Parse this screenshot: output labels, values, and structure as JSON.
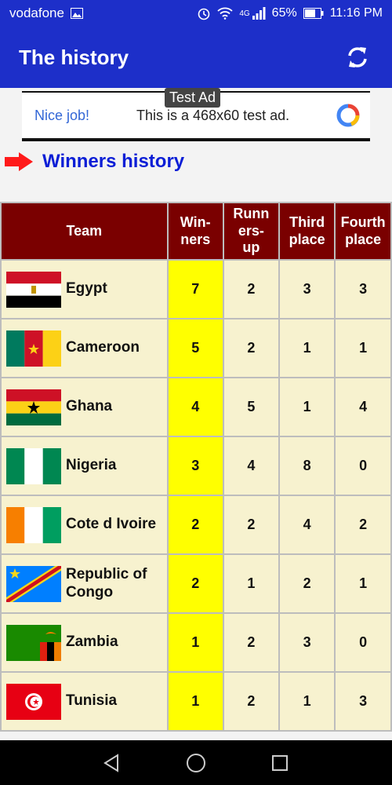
{
  "status_bar": {
    "carrier": "vodafone",
    "network": "4G",
    "battery": "65%",
    "time": "11:16 PM"
  },
  "app_bar": {
    "title": "The history",
    "refresh_icon": "refresh-icon"
  },
  "ad": {
    "tag": "Test Ad",
    "nice_text": "Nice job!",
    "body_text": "This is a 468x60 test ad."
  },
  "section": {
    "heading": "Winners history"
  },
  "table": {
    "headers": {
      "team": "Team",
      "winners": "Win-ners",
      "runners_up": "Runn ers-up",
      "third": "Third place",
      "fourth": "Fourth place"
    },
    "rows": [
      {
        "team": "Egypt",
        "flag": "egypt",
        "winners": "7",
        "runners_up": "2",
        "third": "3",
        "fourth": "3"
      },
      {
        "team": "Cameroon",
        "flag": "cameroon",
        "winners": "5",
        "runners_up": "2",
        "third": "1",
        "fourth": "1"
      },
      {
        "team": "Ghana",
        "flag": "ghana",
        "winners": "4",
        "runners_up": "5",
        "third": "1",
        "fourth": "4"
      },
      {
        "team": "Nigeria",
        "flag": "nigeria",
        "winners": "3",
        "runners_up": "4",
        "third": "8",
        "fourth": "0"
      },
      {
        "team": "Cote d Ivoire",
        "flag": "cote-divoire",
        "winners": "2",
        "runners_up": "2",
        "third": "4",
        "fourth": "2"
      },
      {
        "team": "Republic of Congo",
        "flag": "dr-congo",
        "winners": "2",
        "runners_up": "1",
        "third": "2",
        "fourth": "1"
      },
      {
        "team": "Zambia",
        "flag": "zambia",
        "winners": "1",
        "runners_up": "2",
        "third": "3",
        "fourth": "0"
      },
      {
        "team": "Tunisia",
        "flag": "tunisia",
        "winners": "1",
        "runners_up": "2",
        "third": "1",
        "fourth": "3"
      }
    ]
  },
  "colors": {
    "app_bar": "#1d2fc9",
    "header_bg": "#7a0000",
    "cell_bg": "#f7f2cf",
    "winners_bg": "#ffff00",
    "heading": "#0b1ed6"
  }
}
